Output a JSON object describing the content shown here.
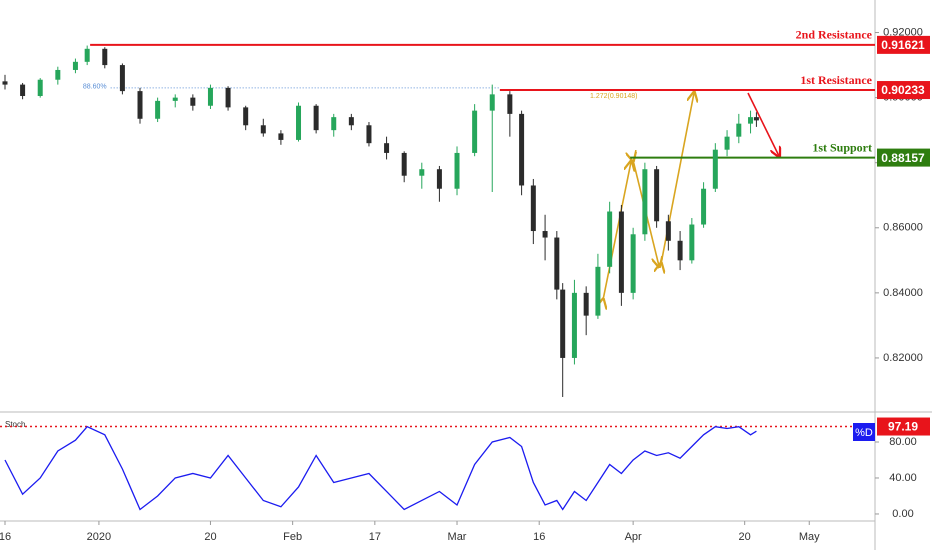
{
  "chart_data": [
    {
      "type": "candlestick",
      "x": [
        0,
        3,
        6,
        9,
        12,
        14,
        17,
        20,
        23,
        26,
        29,
        32,
        35,
        38,
        41,
        44,
        47,
        50,
        53,
        56,
        59,
        62,
        65,
        68,
        71,
        74,
        77,
        80,
        83,
        86,
        88,
        90,
        92,
        94,
        95,
        97,
        99,
        101,
        103,
        105,
        107,
        109,
        111,
        113,
        115,
        117,
        119,
        121,
        123,
        125,
        127,
        128
      ],
      "open": [
        0.905,
        0.904,
        0.9005,
        0.9055,
        0.9085,
        0.911,
        0.915,
        0.91,
        0.902,
        0.8935,
        0.899,
        0.9,
        0.8975,
        0.903,
        0.897,
        0.8915,
        0.889,
        0.887,
        0.8975,
        0.89,
        0.894,
        0.8915,
        0.886,
        0.883,
        0.876,
        0.878,
        0.872,
        0.883,
        0.896,
        0.901,
        0.895,
        0.873,
        0.859,
        0.857,
        0.841,
        0.82,
        0.84,
        0.833,
        0.848,
        0.865,
        0.84,
        0.858,
        0.878,
        0.862,
        0.856,
        0.85,
        0.861,
        0.872,
        0.884,
        0.888,
        0.892,
        0.894
      ],
      "high": [
        0.907,
        0.9045,
        0.906,
        0.9095,
        0.912,
        0.916,
        0.9155,
        0.9105,
        0.903,
        0.9,
        0.901,
        0.901,
        0.904,
        0.9035,
        0.8975,
        0.8935,
        0.89,
        0.8985,
        0.898,
        0.895,
        0.895,
        0.8925,
        0.888,
        0.8835,
        0.88,
        0.879,
        0.885,
        0.898,
        0.904,
        0.902,
        0.896,
        0.875,
        0.864,
        0.859,
        0.843,
        0.844,
        0.842,
        0.852,
        0.868,
        0.867,
        0.86,
        0.88,
        0.879,
        0.864,
        0.859,
        0.863,
        0.874,
        0.886,
        0.89,
        0.895,
        0.896,
        0.8955
      ],
      "low": [
        0.9025,
        0.8995,
        0.9,
        0.904,
        0.9075,
        0.91,
        0.909,
        0.901,
        0.892,
        0.8925,
        0.897,
        0.896,
        0.8965,
        0.896,
        0.89,
        0.888,
        0.8855,
        0.8865,
        0.889,
        0.888,
        0.89,
        0.885,
        0.881,
        0.874,
        0.872,
        0.868,
        0.87,
        0.882,
        0.871,
        0.888,
        0.87,
        0.855,
        0.85,
        0.838,
        0.808,
        0.818,
        0.827,
        0.832,
        0.846,
        0.836,
        0.838,
        0.856,
        0.86,
        0.853,
        0.847,
        0.849,
        0.86,
        0.871,
        0.882,
        0.886,
        0.889,
        0.891
      ],
      "close": [
        0.904,
        0.9005,
        0.9055,
        0.9085,
        0.911,
        0.915,
        0.91,
        0.902,
        0.8935,
        0.899,
        0.9,
        0.8975,
        0.903,
        0.897,
        0.8915,
        0.889,
        0.887,
        0.8975,
        0.89,
        0.894,
        0.8915,
        0.886,
        0.883,
        0.876,
        0.878,
        0.872,
        0.883,
        0.896,
        0.901,
        0.895,
        0.873,
        0.859,
        0.857,
        0.841,
        0.82,
        0.84,
        0.833,
        0.848,
        0.865,
        0.84,
        0.858,
        0.878,
        0.862,
        0.856,
        0.85,
        0.861,
        0.872,
        0.884,
        0.888,
        0.892,
        0.894,
        0.893
      ],
      "up_color": "#26a65b",
      "down_color": "#2b2b2b",
      "xlim": [
        -0.85,
        148.2
      ],
      "ylim": [
        0.804,
        0.93
      ],
      "xticks": [
        {
          "value": 0,
          "label": "16"
        },
        {
          "value": 16,
          "label": "2020"
        },
        {
          "value": 35,
          "label": "20"
        },
        {
          "value": 49,
          "label": "Feb"
        },
        {
          "value": 63,
          "label": "17"
        },
        {
          "value": 77,
          "label": "Mar"
        },
        {
          "value": 91,
          "label": "16"
        },
        {
          "value": 107,
          "label": "Apr"
        },
        {
          "value": 126,
          "label": "20"
        },
        {
          "value": 137,
          "label": "May"
        }
      ],
      "yticks": [
        {
          "value": 0.82,
          "label": "0.82000"
        },
        {
          "value": 0.84,
          "label": "0.84000"
        },
        {
          "value": 0.86,
          "label": "0.86000"
        },
        {
          "value": 0.88,
          "label": "0.88000"
        },
        {
          "value": 0.9,
          "label": "0.90000"
        },
        {
          "value": 0.92,
          "label": "0.92000"
        }
      ],
      "levels": [
        {
          "label": "2nd Resistance",
          "value": 0.91621,
          "color": "#e8141b",
          "from": 14.5
        },
        {
          "label": "1st Resistance",
          "value": 0.90233,
          "color": "#e8141b",
          "from": 84.3
        },
        {
          "label": "1st Support",
          "value": 0.88157,
          "color": "#2e7d0f",
          "from": 106.5
        }
      ],
      "fib": {
        "label": "88.60%",
        "value": 0.903,
        "from": 18,
        "to": 84.3,
        "color": "#5b8fd6"
      },
      "extension_label": "1.272(0.90148)"
    },
    {
      "type": "line",
      "title": "Stoch",
      "series": [
        {
          "name": "%D",
          "color": "#1c1cf0",
          "values": [
            60,
            22,
            40,
            70,
            82,
            97,
            88,
            50,
            5,
            20,
            40,
            45,
            40,
            65,
            40,
            15,
            8,
            30,
            65,
            35,
            40,
            45,
            25,
            5,
            15,
            25,
            10,
            55,
            80,
            85,
            75,
            35,
            10,
            15,
            5,
            25,
            15,
            35,
            55,
            45,
            60,
            70,
            65,
            68,
            62,
            75,
            88,
            97,
            95,
            97,
            88,
            92
          ]
        }
      ],
      "ylim": [
        -6.7,
        110
      ],
      "yticks": [
        {
          "value": 0,
          "label": "0.00"
        },
        {
          "value": 40,
          "label": "40.00"
        },
        {
          "value": 80,
          "label": "80.00"
        }
      ],
      "reference": {
        "value": 97.19,
        "color": "#e8141b"
      }
    }
  ]
}
